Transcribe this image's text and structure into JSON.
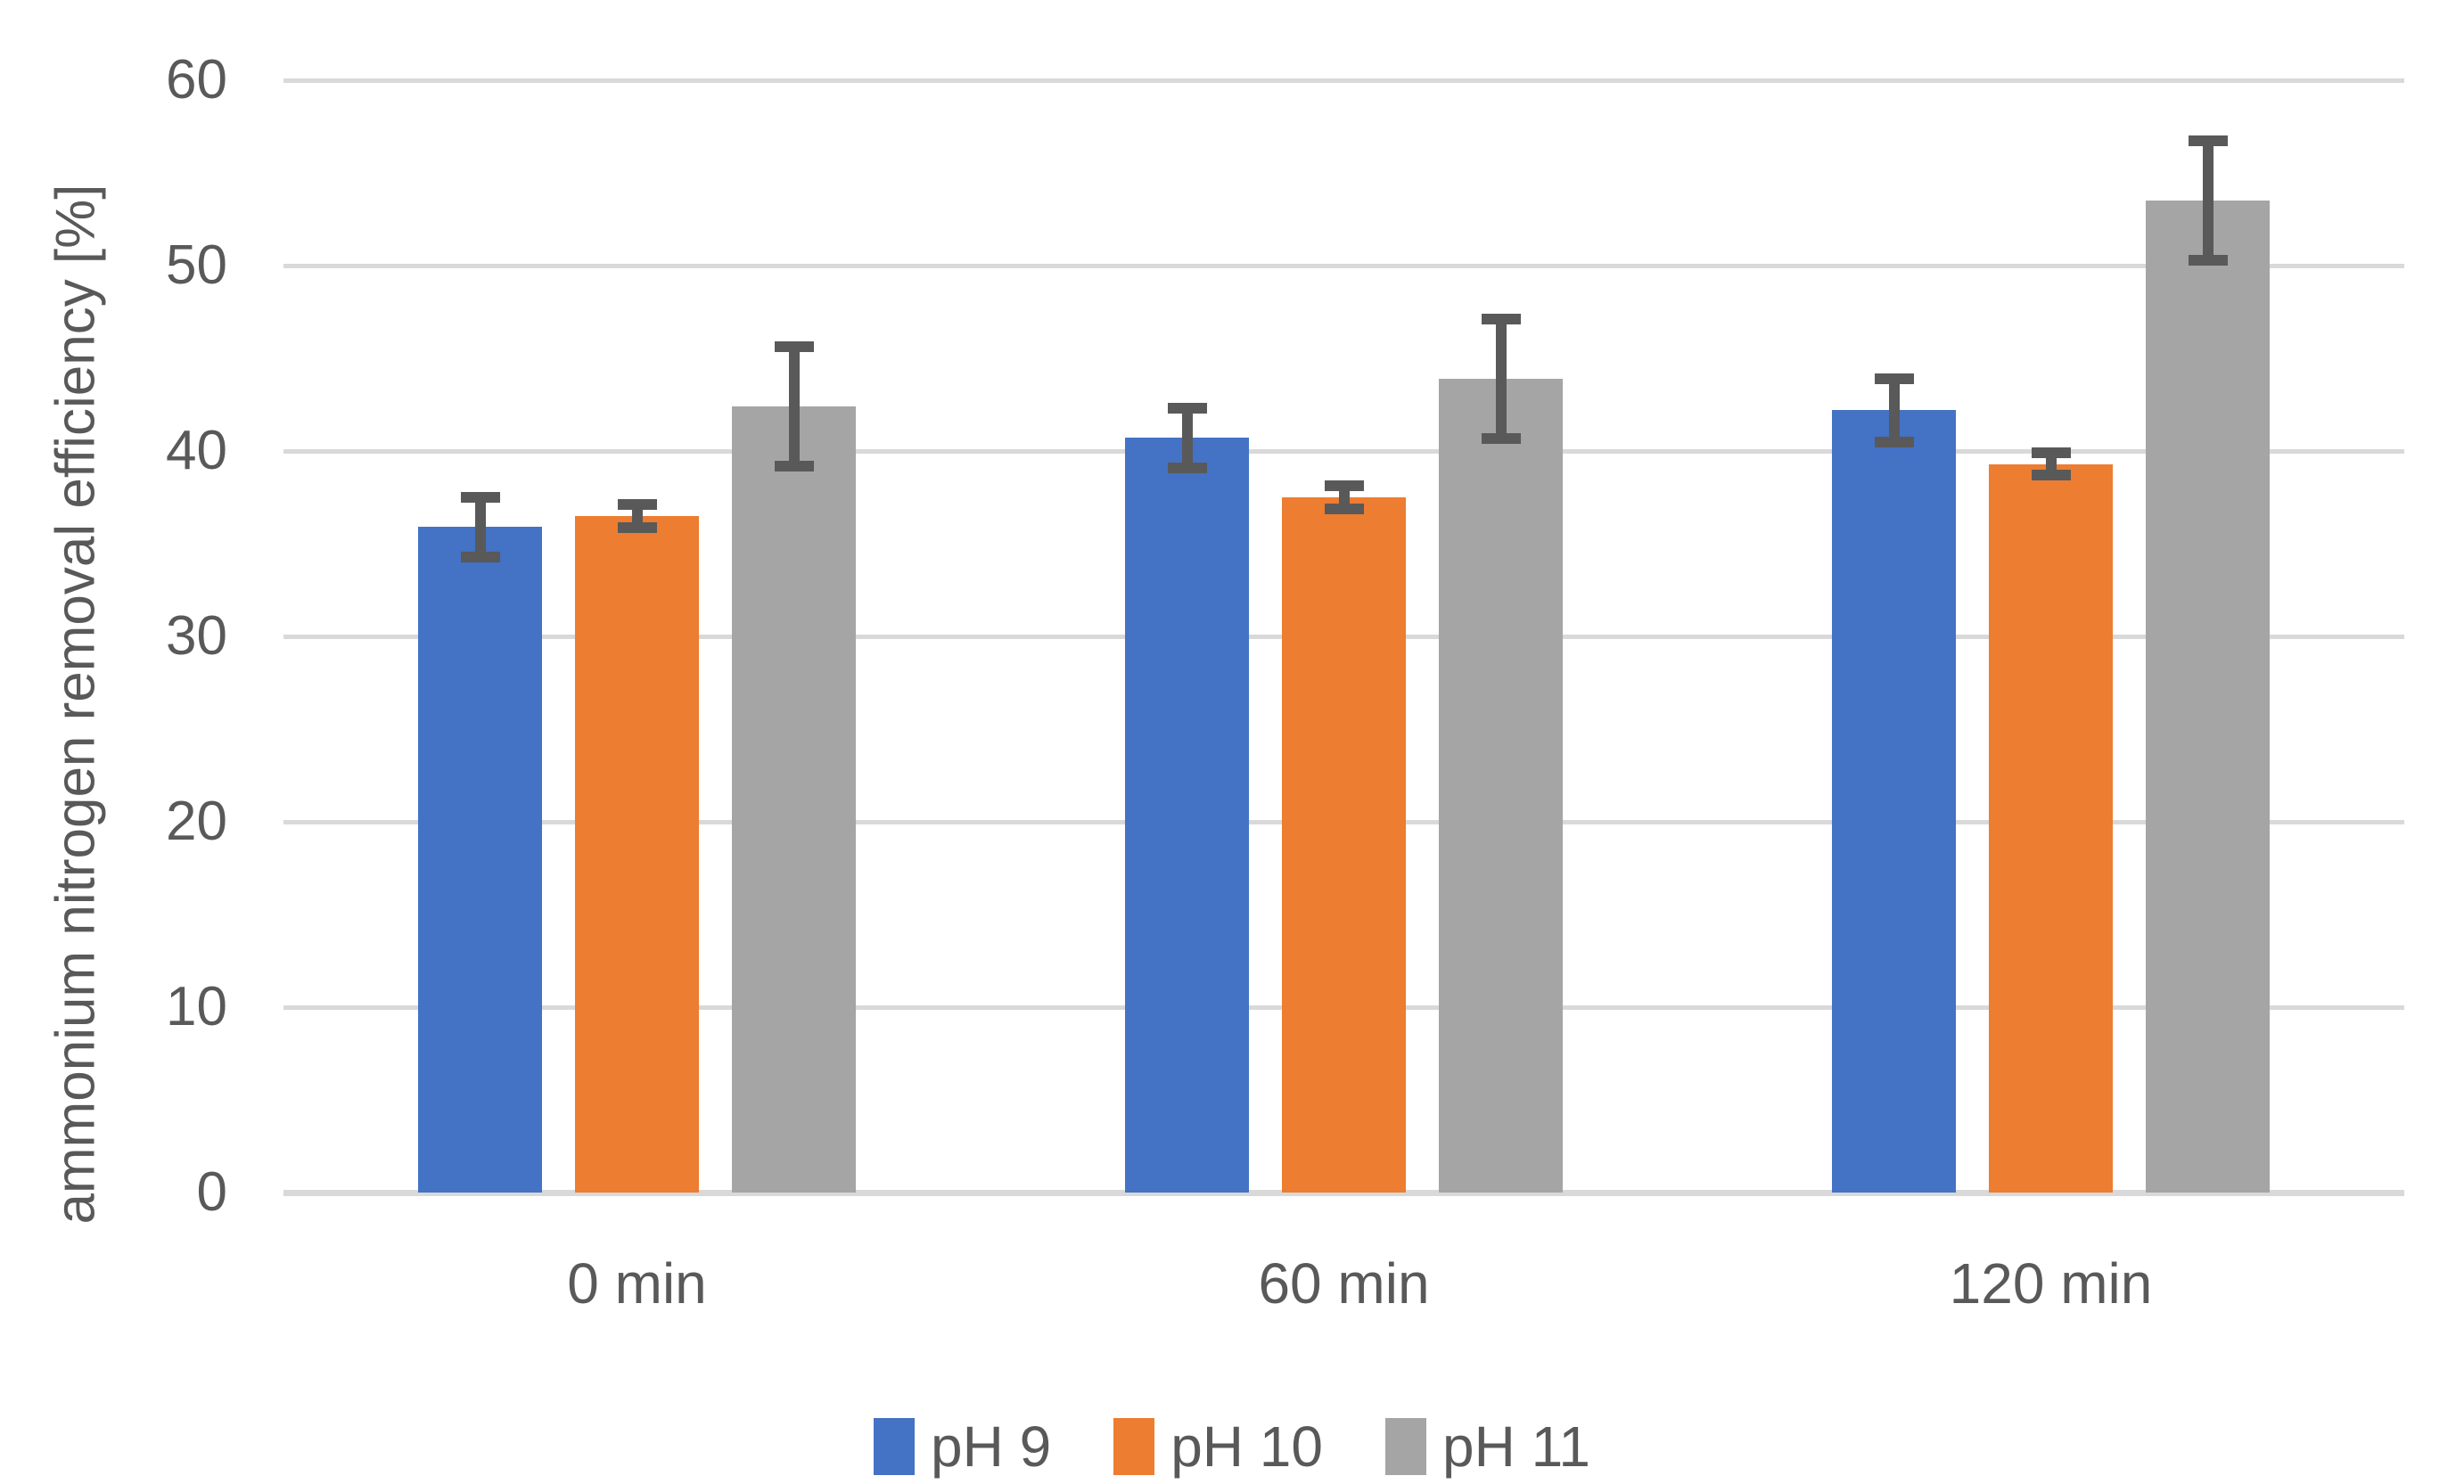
{
  "chart_data": {
    "type": "bar",
    "title": "",
    "categories": [
      "0 min",
      "60 min",
      "120 min"
    ],
    "series": [
      {
        "name": "pH 9",
        "color": "#4472C4",
        "values": [
          35.9,
          40.7,
          42.2
        ],
        "errors": [
          1.9,
          1.9,
          2.0
        ]
      },
      {
        "name": "pH 10",
        "color": "#ED7D31",
        "values": [
          36.5,
          37.5,
          39.3
        ],
        "errors": [
          0.9,
          0.9,
          0.9
        ]
      },
      {
        "name": "pH 11",
        "color": "#A5A5A5",
        "values": [
          42.4,
          43.9,
          53.5
        ],
        "errors": [
          3.5,
          3.5,
          3.5
        ]
      }
    ],
    "ylabel": "ammonium nitrogen removal efficiency [%]",
    "xlabel": "",
    "ylim": [
      0,
      60
    ],
    "yticks": [
      0,
      10,
      20,
      30,
      40,
      50,
      60
    ],
    "grid": true,
    "legend_position": "bottom",
    "error_bar_color": "#595959",
    "grid_color": "#D9D9D9",
    "axis_line_color": "#D9D9D9",
    "text_color": "#595959",
    "background_color": "#FFFFFF"
  }
}
